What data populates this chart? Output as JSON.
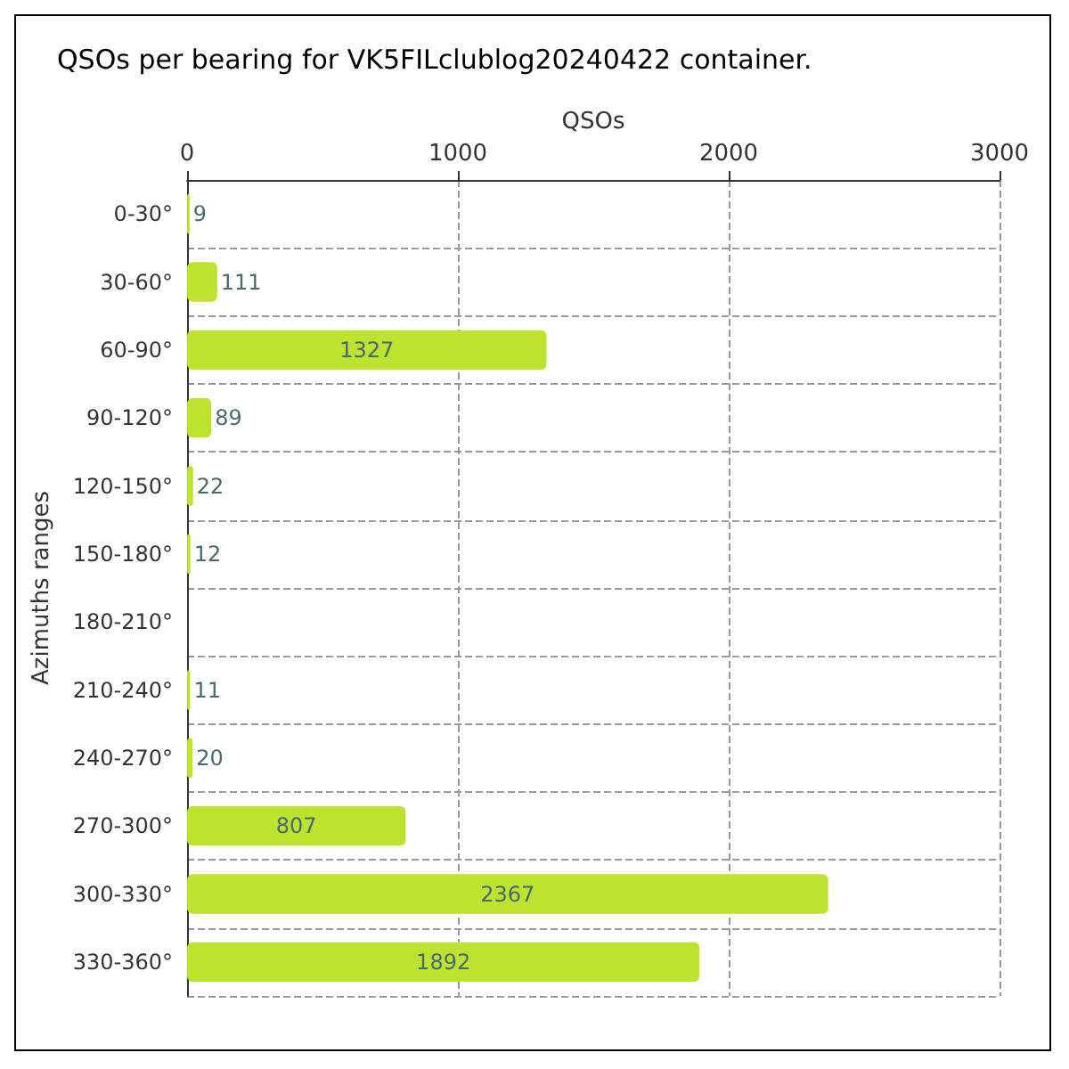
{
  "chart_data": {
    "type": "bar",
    "orientation": "horizontal",
    "title": "QSOs per bearing for VK5FILclublog20240422 container.",
    "xlabel": "QSOs",
    "ylabel": "Azimuths ranges",
    "categories": [
      "0-30°",
      "30-60°",
      "60-90°",
      "90-120°",
      "120-150°",
      "150-180°",
      "180-210°",
      "210-240°",
      "240-270°",
      "270-300°",
      "300-330°",
      "330-360°"
    ],
    "values": [
      9,
      111,
      1327,
      89,
      22,
      12,
      null,
      11,
      20,
      807,
      2367,
      1892
    ],
    "color": "#bde22f",
    "data_labels": true,
    "xlim": [
      0,
      3000
    ],
    "xticks": [
      0,
      1000,
      2000,
      3000
    ],
    "grid": true
  }
}
